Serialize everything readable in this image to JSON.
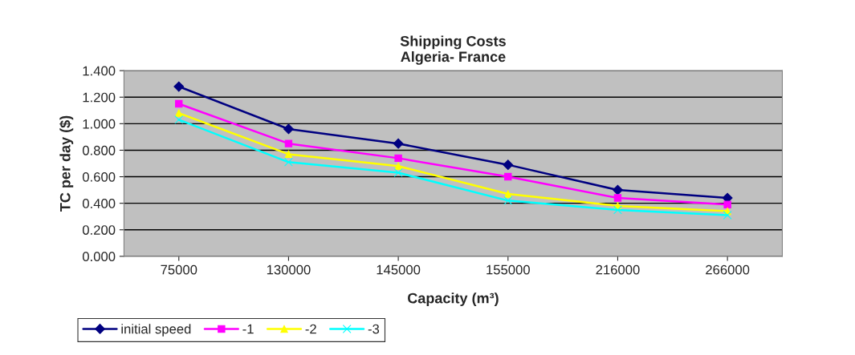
{
  "chart_data": {
    "type": "line",
    "title": "Shipping Costs\nAlgeria- France",
    "xlabel": "Capacity (m³)",
    "ylabel": "TC per day ($)",
    "categories": [
      "75000",
      "130000",
      "145000",
      "155000",
      "216000",
      "266000"
    ],
    "series": [
      {
        "name": "initial speed",
        "color": "#000080",
        "marker": "diamond",
        "values": [
          1.28,
          0.96,
          0.85,
          0.69,
          0.5,
          0.44
        ]
      },
      {
        "name": "-1",
        "color": "#ff00ff",
        "marker": "square",
        "values": [
          1.15,
          0.85,
          0.74,
          0.6,
          0.44,
          0.39
        ]
      },
      {
        "name": "-2",
        "color": "#ffff00",
        "marker": "triangle",
        "values": [
          1.08,
          0.77,
          0.68,
          0.47,
          0.38,
          0.34
        ]
      },
      {
        "name": "-3",
        "color": "#00ffff",
        "marker": "cross",
        "values": [
          1.03,
          0.71,
          0.63,
          0.42,
          0.35,
          0.31
        ]
      }
    ],
    "ylim": [
      0,
      1.4
    ],
    "yticks": [
      {
        "value": 0,
        "label": "0.000"
      },
      {
        "value": 0.2,
        "label": "0.200"
      },
      {
        "value": 0.4,
        "label": "0.400"
      },
      {
        "value": 0.6,
        "label": "0.600"
      },
      {
        "value": 0.8,
        "label": "0.800"
      },
      {
        "value": 1.0,
        "label": "1.000"
      },
      {
        "value": 1.2,
        "label": "1.200"
      },
      {
        "value": 1.4,
        "label": "1.400"
      }
    ],
    "grid": "y",
    "legend": "bottom left"
  }
}
